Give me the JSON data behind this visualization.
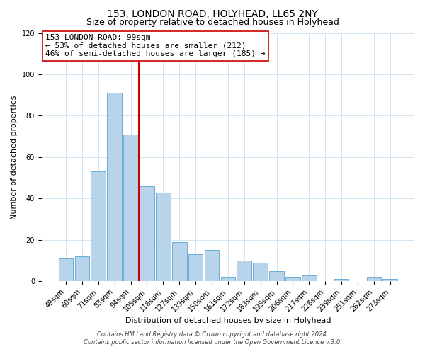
{
  "title": "153, LONDON ROAD, HOLYHEAD, LL65 2NY",
  "subtitle": "Size of property relative to detached houses in Holyhead",
  "xlabel": "Distribution of detached houses by size in Holyhead",
  "ylabel": "Number of detached properties",
  "bar_labels": [
    "49sqm",
    "60sqm",
    "71sqm",
    "83sqm",
    "94sqm",
    "105sqm",
    "116sqm",
    "127sqm",
    "139sqm",
    "150sqm",
    "161sqm",
    "172sqm",
    "183sqm",
    "195sqm",
    "206sqm",
    "217sqm",
    "228sqm",
    "239sqm",
    "251sqm",
    "262sqm",
    "273sqm"
  ],
  "bar_values": [
    11,
    12,
    53,
    91,
    71,
    46,
    43,
    19,
    13,
    15,
    2,
    10,
    9,
    5,
    2,
    3,
    0,
    1,
    0,
    2,
    1
  ],
  "bar_color": "#b8d4ea",
  "bar_edge_color": "#6aaed6",
  "vline_x": 4.5,
  "vline_color": "#cc0000",
  "ylim": [
    0,
    120
  ],
  "yticks": [
    0,
    20,
    40,
    60,
    80,
    100,
    120
  ],
  "annotation_title": "153 LONDON ROAD: 99sqm",
  "annotation_line1": "← 53% of detached houses are smaller (212)",
  "annotation_line2": "46% of semi-detached houses are larger (185) →",
  "footer1": "Contains HM Land Registry data © Crown copyright and database right 2024.",
  "footer2": "Contains public sector information licensed under the Open Government Licence v.3.0.",
  "title_fontsize": 10,
  "subtitle_fontsize": 9,
  "label_fontsize": 8,
  "tick_fontsize": 7,
  "annot_fontsize": 8,
  "footer_fontsize": 6
}
